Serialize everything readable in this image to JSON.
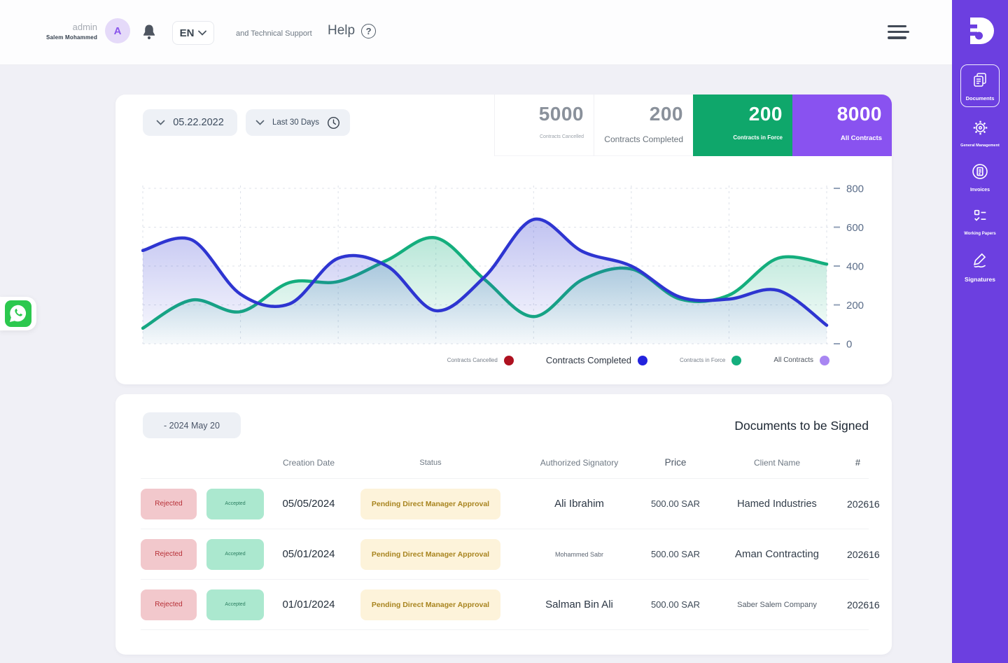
{
  "header": {
    "user": {
      "role": "admin",
      "name": "Salem Mohammed",
      "avatar_initial": "A"
    },
    "language": "EN",
    "support_text": "and Technical Support",
    "help_label": "Help"
  },
  "sidebar": {
    "items": [
      {
        "label": "Documents",
        "icon": "documents-icon",
        "active": true
      },
      {
        "label": "General Management",
        "icon": "gear-icon",
        "active": false
      },
      {
        "label": "Invoices",
        "icon": "invoice-icon",
        "active": false
      },
      {
        "label": "Working Papers",
        "icon": "working-papers-icon",
        "active": false
      },
      {
        "label": "Signatures",
        "icon": "signature-icon",
        "active": false
      }
    ]
  },
  "filters": {
    "date": "05.22.2022",
    "range": "Last 30 Days"
  },
  "stats": [
    {
      "value": "5000",
      "label": "Contracts Cancelled",
      "bg": "#ffffff",
      "color": "#8a919b"
    },
    {
      "value": "200",
      "label": "Contracts Completed",
      "bg": "#ffffff",
      "color": "#8a919b"
    },
    {
      "value": "200",
      "label": "Contracts in Force",
      "bg": "#0fa76b",
      "color": "#ffffff"
    },
    {
      "value": "8000",
      "label": "All Contracts",
      "bg": "#8952f0",
      "color": "#ffffff"
    }
  ],
  "chart_data": {
    "type": "area",
    "x": [
      1,
      2,
      3,
      4,
      5,
      6,
      7,
      8,
      9,
      10,
      11,
      12,
      13,
      14,
      15
    ],
    "series": [
      {
        "name": "Contracts Completed",
        "color": "#2e35d1",
        "values": [
          480,
          535,
          255,
          205,
          440,
          400,
          170,
          345,
          640,
          475,
          400,
          240,
          230,
          275,
          95
        ]
      },
      {
        "name": "Contracts in Force",
        "color": "#14ae7d",
        "values": [
          80,
          225,
          165,
          315,
          320,
          430,
          545,
          330,
          140,
          330,
          385,
          230,
          250,
          440,
          410
        ]
      }
    ],
    "legend": [
      {
        "label": "Contracts Cancelled",
        "color": "#ae1120"
      },
      {
        "label": "Contracts Completed",
        "color": "#2323dd"
      },
      {
        "label": "Contracts in Force",
        "color": "#14ae7d"
      },
      {
        "label": "All Contracts",
        "color": "#a886f2"
      }
    ],
    "yticks": [
      0,
      200,
      400,
      600,
      800
    ],
    "ylim": [
      0,
      800
    ],
    "grid": true,
    "legend_position": "bottom"
  },
  "table": {
    "title": "Documents to be Signed",
    "date_filter": "- 2024 May 20",
    "columns": [
      "Creation Date",
      "Status",
      "Authorized Signatory",
      "Price",
      "Client Name",
      "#"
    ],
    "actions": {
      "reject": "Rejected",
      "accept": "Accepted"
    },
    "rows": [
      {
        "creation_date": "05/05/2024",
        "status": "Pending Direct Manager Approval",
        "authorized_signatory": "Ali Ibrahim",
        "price": "500.00 SAR",
        "client_name": "Hamed Industries",
        "number": "202616"
      },
      {
        "creation_date": "05/01/2024",
        "status": "Pending Direct Manager Approval",
        "authorized_signatory": "Mohammed Sabr",
        "price": "500.00 SAR",
        "client_name": "Aman Contracting",
        "number": "202616"
      },
      {
        "creation_date": "01/01/2024",
        "status": "Pending Direct Manager Approval",
        "authorized_signatory": "Salman Bin Ali",
        "price": "500.00 SAR",
        "client_name": "Saber Salem Company",
        "number": "202616"
      }
    ]
  },
  "colors": {
    "sidebar": "#6c3fe0",
    "green_card": "#0fa76b",
    "purple_card": "#8952f0",
    "whatsapp": "#2cc84e"
  }
}
